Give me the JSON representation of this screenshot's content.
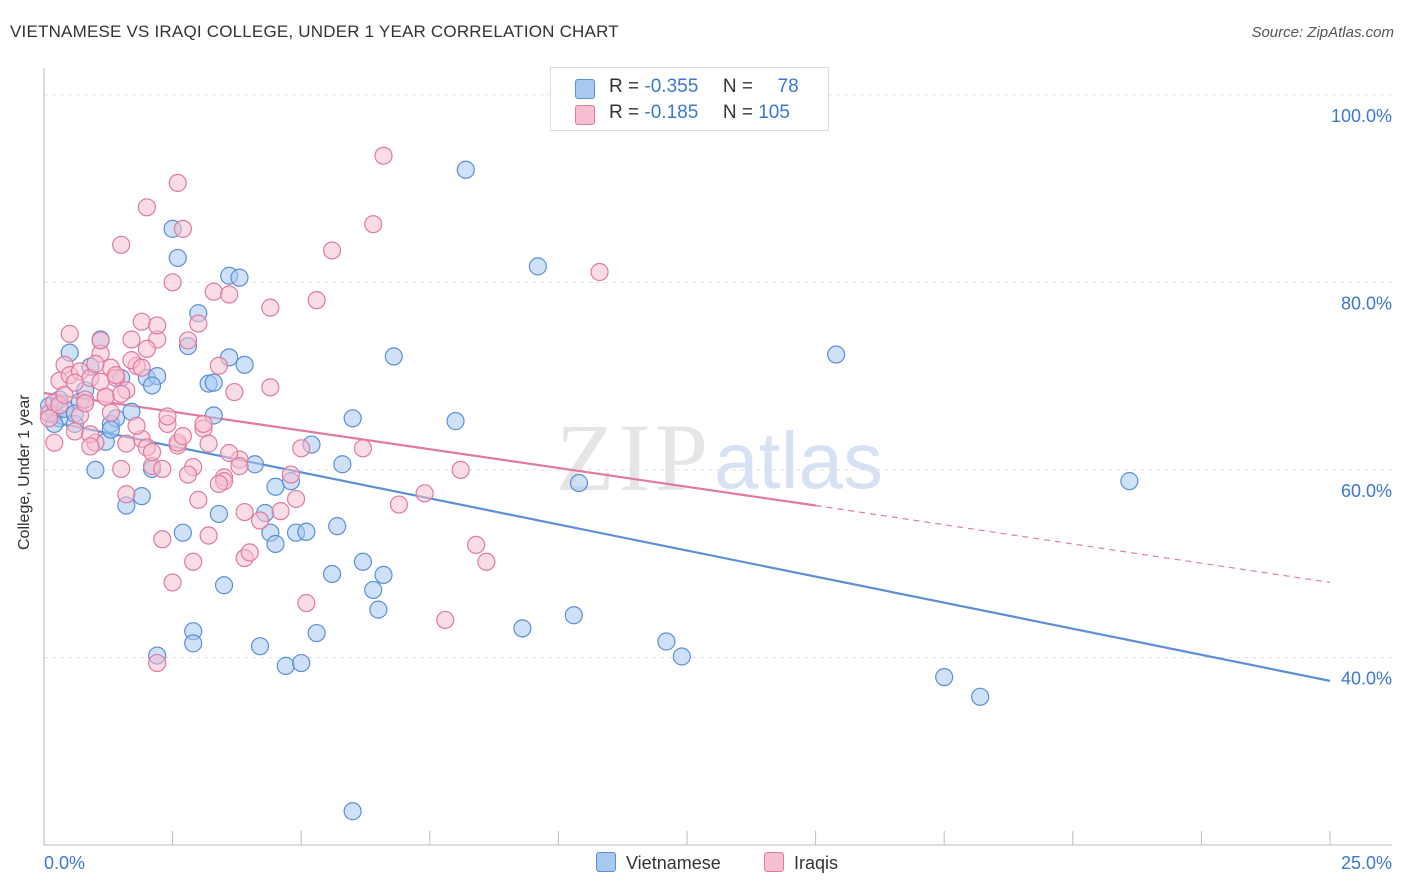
{
  "title": "VIETNAMESE VS IRAQI COLLEGE, UNDER 1 YEAR CORRELATION CHART",
  "source": "Source: ZipAtlas.com",
  "watermark": {
    "zip": "ZIP",
    "atlas": "atlas"
  },
  "legend": {
    "r_label": "R =",
    "n_label": "N =",
    "rows": [
      {
        "r": "-0.355",
        "n": "78",
        "color": "#a8c8f0",
        "border": "#5b8fd6"
      },
      {
        "r": "-0.185",
        "n": "105",
        "color": "#f6bfd0",
        "border": "#e07aa0"
      }
    ]
  },
  "bottom_legend": [
    {
      "label": "Vietnamese",
      "color": "#a8c8f0",
      "border": "#5b8fd6"
    },
    {
      "label": "Iraqis",
      "color": "#f6bfd0",
      "border": "#e07aa0"
    }
  ],
  "chart_data": {
    "type": "scatter",
    "title": "VIETNAMESE VS IRAQI COLLEGE, UNDER 1 YEAR CORRELATION CHART",
    "xlabel": "",
    "ylabel": "College, Under 1 year",
    "xlim": [
      0,
      25
    ],
    "ylim": [
      20,
      102
    ],
    "x_tick_labels": [
      "0.0%",
      "25.0%"
    ],
    "y_ticks": [
      40,
      60,
      80,
      100
    ],
    "y_tick_labels": [
      "40.0%",
      "60.0%",
      "80.0%",
      "100.0%"
    ],
    "grid": true,
    "legend_position": "top-center",
    "series": [
      {
        "name": "Vietnamese",
        "color": "#5b8fd6",
        "fill": "#a8c8f0",
        "trend": {
          "x": [
            0,
            25
          ],
          "y": [
            65.3,
            37.5
          ]
        },
        "points": [
          [
            0.1,
            66.8
          ],
          [
            0.2,
            66.0
          ],
          [
            0.3,
            67.5
          ],
          [
            0.3,
            65.5
          ],
          [
            0.4,
            66.5
          ],
          [
            0.5,
            72.5
          ],
          [
            0.6,
            64.9
          ],
          [
            0.7,
            67.3
          ],
          [
            0.8,
            68.5
          ],
          [
            0.9,
            71.0
          ],
          [
            1.0,
            60.0
          ],
          [
            1.1,
            73.9
          ],
          [
            1.2,
            63.0
          ],
          [
            1.3,
            64.9
          ],
          [
            1.4,
            65.5
          ],
          [
            1.5,
            69.8
          ],
          [
            1.6,
            56.2
          ],
          [
            1.7,
            66.2
          ],
          [
            1.9,
            57.2
          ],
          [
            2.0,
            69.8
          ],
          [
            2.1,
            60.1
          ],
          [
            2.2,
            70.0
          ],
          [
            2.2,
            40.2
          ],
          [
            2.5,
            85.7
          ],
          [
            2.6,
            82.6
          ],
          [
            2.7,
            53.3
          ],
          [
            2.8,
            73.2
          ],
          [
            2.9,
            42.8
          ],
          [
            2.9,
            41.5
          ],
          [
            3.0,
            76.7
          ],
          [
            3.2,
            69.2
          ],
          [
            3.3,
            65.8
          ],
          [
            3.4,
            55.3
          ],
          [
            3.5,
            47.7
          ],
          [
            3.6,
            80.7
          ],
          [
            3.6,
            72.0
          ],
          [
            3.8,
            80.5
          ],
          [
            3.9,
            71.2
          ],
          [
            4.1,
            60.6
          ],
          [
            4.2,
            41.2
          ],
          [
            4.3,
            55.4
          ],
          [
            4.4,
            53.3
          ],
          [
            4.5,
            52.1
          ],
          [
            4.5,
            58.2
          ],
          [
            4.7,
            39.1
          ],
          [
            4.8,
            58.8
          ],
          [
            4.9,
            53.3
          ],
          [
            5.0,
            39.4
          ],
          [
            5.1,
            53.4
          ],
          [
            5.2,
            62.7
          ],
          [
            5.3,
            42.6
          ],
          [
            5.6,
            48.9
          ],
          [
            5.7,
            54.0
          ],
          [
            5.8,
            60.6
          ],
          [
            6.0,
            65.5
          ],
          [
            6.2,
            50.2
          ],
          [
            6.4,
            47.2
          ],
          [
            6.5,
            45.1
          ],
          [
            6.6,
            48.8
          ],
          [
            6.8,
            72.1
          ],
          [
            8.0,
            65.2
          ],
          [
            8.2,
            92.0
          ],
          [
            9.3,
            43.1
          ],
          [
            9.6,
            81.7
          ],
          [
            10.3,
            44.5
          ],
          [
            10.4,
            58.6
          ],
          [
            12.1,
            41.7
          ],
          [
            12.4,
            40.1
          ],
          [
            15.4,
            72.3
          ],
          [
            17.5,
            37.9
          ],
          [
            18.2,
            35.8
          ],
          [
            21.1,
            58.8
          ],
          [
            0.2,
            64.9
          ],
          [
            1.3,
            64.3
          ],
          [
            2.1,
            69.0
          ],
          [
            3.3,
            69.3
          ],
          [
            6.0,
            23.6
          ],
          [
            0.6,
            66.0
          ]
        ]
      },
      {
        "name": "Iraqis",
        "color": "#e07aa0",
        "fill": "#f6bfd0",
        "trend": {
          "x": [
            0,
            15
          ],
          "y": [
            68.2,
            56.2
          ]
        },
        "trend_dash": {
          "x": [
            15,
            25
          ],
          "y": [
            56.2,
            48.0
          ]
        },
        "points": [
          [
            0.1,
            66.0
          ],
          [
            0.2,
            67.2
          ],
          [
            0.3,
            69.5
          ],
          [
            0.4,
            71.2
          ],
          [
            0.5,
            70.1
          ],
          [
            0.5,
            74.5
          ],
          [
            0.6,
            64.1
          ],
          [
            0.7,
            70.5
          ],
          [
            0.8,
            67.5
          ],
          [
            0.9,
            69.8
          ],
          [
            1.0,
            62.9
          ],
          [
            1.1,
            72.4
          ],
          [
            1.2,
            67.8
          ],
          [
            1.3,
            70.9
          ],
          [
            1.4,
            69.8
          ],
          [
            1.5,
            60.1
          ],
          [
            1.5,
            84.0
          ],
          [
            1.6,
            57.4
          ],
          [
            1.6,
            68.5
          ],
          [
            1.7,
            73.9
          ],
          [
            1.8,
            71.1
          ],
          [
            1.9,
            75.8
          ],
          [
            1.9,
            63.3
          ],
          [
            2.0,
            88.0
          ],
          [
            2.0,
            62.4
          ],
          [
            2.1,
            60.4
          ],
          [
            2.2,
            73.9
          ],
          [
            2.2,
            75.4
          ],
          [
            2.3,
            52.6
          ],
          [
            2.4,
            64.9
          ],
          [
            2.5,
            80.0
          ],
          [
            2.5,
            48.0
          ],
          [
            2.6,
            90.6
          ],
          [
            2.6,
            62.6
          ],
          [
            2.7,
            85.7
          ],
          [
            2.8,
            73.8
          ],
          [
            2.9,
            50.2
          ],
          [
            2.9,
            60.3
          ],
          [
            3.0,
            75.6
          ],
          [
            3.1,
            64.4
          ],
          [
            3.1,
            64.9
          ],
          [
            3.2,
            53.0
          ],
          [
            3.3,
            79.0
          ],
          [
            3.4,
            71.1
          ],
          [
            3.5,
            59.2
          ],
          [
            3.5,
            58.8
          ],
          [
            3.6,
            78.7
          ],
          [
            3.7,
            68.3
          ],
          [
            3.8,
            61.1
          ],
          [
            3.9,
            55.5
          ],
          [
            3.9,
            50.6
          ],
          [
            4.0,
            51.2
          ],
          [
            4.2,
            54.6
          ],
          [
            4.4,
            77.3
          ],
          [
            4.4,
            68.8
          ],
          [
            4.6,
            55.6
          ],
          [
            4.8,
            59.5
          ],
          [
            4.9,
            56.9
          ],
          [
            5.0,
            62.3
          ],
          [
            5.1,
            45.8
          ],
          [
            5.3,
            78.1
          ],
          [
            5.6,
            83.4
          ],
          [
            6.2,
            62.3
          ],
          [
            6.4,
            86.2
          ],
          [
            6.6,
            93.5
          ],
          [
            6.9,
            56.3
          ],
          [
            7.4,
            57.5
          ],
          [
            7.8,
            44.0
          ],
          [
            8.1,
            60.0
          ],
          [
            8.4,
            52.0
          ],
          [
            8.6,
            50.2
          ],
          [
            10.8,
            81.1
          ],
          [
            0.1,
            65.5
          ],
          [
            0.3,
            66.9
          ],
          [
            0.4,
            68.0
          ],
          [
            0.6,
            69.3
          ],
          [
            0.7,
            65.8
          ],
          [
            0.8,
            67.1
          ],
          [
            0.9,
            63.8
          ],
          [
            1.0,
            71.3
          ],
          [
            1.1,
            69.4
          ],
          [
            1.2,
            67.8
          ],
          [
            1.3,
            66.1
          ],
          [
            1.4,
            70.1
          ],
          [
            1.5,
            68.1
          ],
          [
            1.6,
            62.8
          ],
          [
            1.7,
            71.7
          ],
          [
            1.8,
            64.7
          ],
          [
            1.9,
            70.9
          ],
          [
            2.0,
            72.9
          ],
          [
            2.1,
            61.9
          ],
          [
            2.3,
            60.1
          ],
          [
            2.4,
            65.7
          ],
          [
            2.6,
            62.9
          ],
          [
            2.7,
            63.6
          ],
          [
            2.8,
            59.5
          ],
          [
            3.0,
            56.8
          ],
          [
            3.2,
            62.8
          ],
          [
            3.4,
            58.5
          ],
          [
            3.6,
            61.8
          ],
          [
            3.8,
            60.4
          ],
          [
            2.2,
            39.4
          ],
          [
            0.9,
            62.5
          ],
          [
            1.1,
            73.8
          ],
          [
            0.2,
            62.9
          ]
        ]
      }
    ]
  }
}
